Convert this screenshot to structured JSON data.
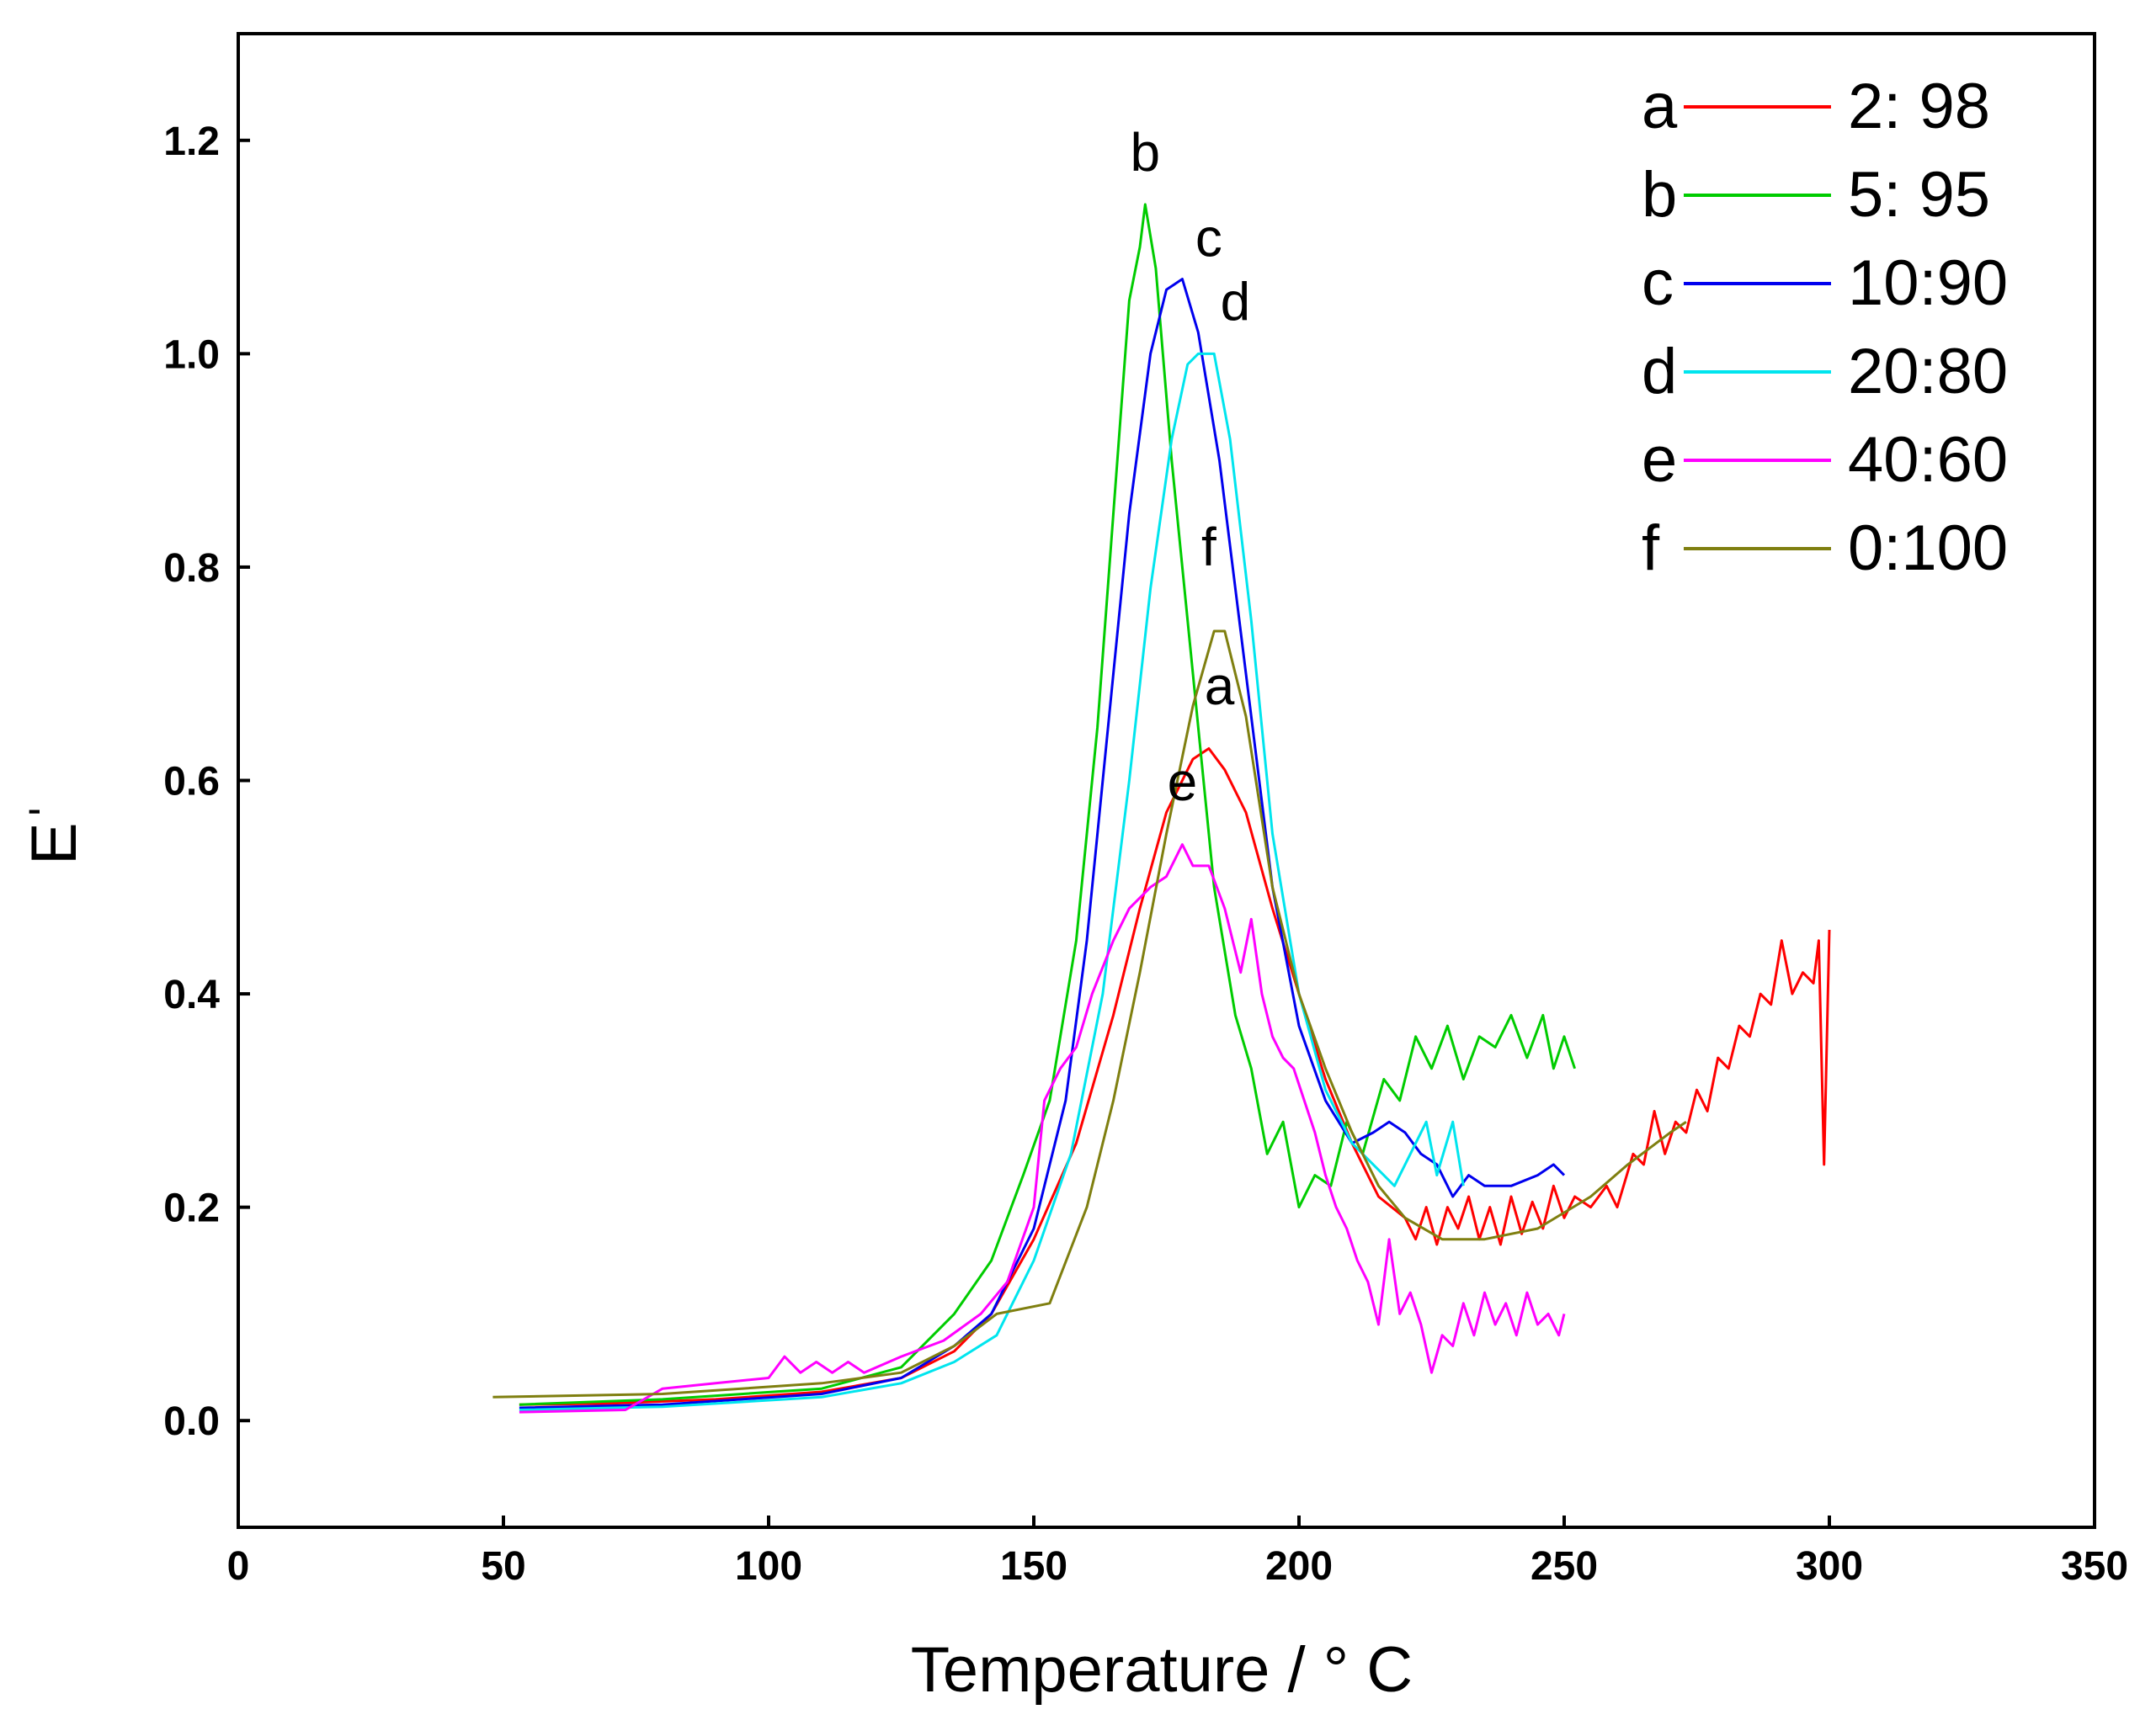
{
  "chart_data": {
    "type": "line",
    "title": "",
    "xlabel": "Temperature / ° C",
    "ylabel": "Eˈ",
    "xlim": [
      0,
      350
    ],
    "ylim": [
      -0.1,
      1.3
    ],
    "xticks": [
      0,
      50,
      100,
      150,
      200,
      250,
      300,
      350
    ],
    "xtick_labels": [
      "0",
      "50",
      "100",
      "150",
      "200",
      "250",
      "300",
      "350"
    ],
    "yticks": [
      0.0,
      0.2,
      0.4,
      0.6,
      0.8,
      1.0,
      1.2
    ],
    "ytick_labels": [
      "0.0",
      "0.2",
      "0.4",
      "0.6",
      "0.8",
      "1.0",
      "1.2"
    ],
    "grid": false,
    "legend_position": "top-right",
    "series": [
      {
        "key": "a",
        "name": "2: 98",
        "color": "#ff0000",
        "points": [
          [
            53,
            0.015
          ],
          [
            70,
            0.016
          ],
          [
            90,
            0.02
          ],
          [
            110,
            0.027
          ],
          [
            125,
            0.04
          ],
          [
            135,
            0.065
          ],
          [
            142,
            0.1
          ],
          [
            150,
            0.17
          ],
          [
            158,
            0.26
          ],
          [
            165,
            0.38
          ],
          [
            170,
            0.48
          ],
          [
            175,
            0.57
          ],
          [
            180,
            0.62
          ],
          [
            183,
            0.63
          ],
          [
            186,
            0.61
          ],
          [
            190,
            0.57
          ],
          [
            195,
            0.48
          ],
          [
            200,
            0.4
          ],
          [
            205,
            0.32
          ],
          [
            210,
            0.26
          ],
          [
            215,
            0.21
          ],
          [
            220,
            0.19
          ],
          [
            222,
            0.17
          ],
          [
            224,
            0.2
          ],
          [
            226,
            0.165
          ],
          [
            228,
            0.2
          ],
          [
            230,
            0.18
          ],
          [
            232,
            0.21
          ],
          [
            234,
            0.17
          ],
          [
            236,
            0.2
          ],
          [
            238,
            0.165
          ],
          [
            240,
            0.21
          ],
          [
            242,
            0.175
          ],
          [
            244,
            0.205
          ],
          [
            246,
            0.18
          ],
          [
            248,
            0.22
          ],
          [
            250,
            0.19
          ],
          [
            252,
            0.21
          ],
          [
            255,
            0.2
          ],
          [
            258,
            0.22
          ],
          [
            260,
            0.2
          ],
          [
            263,
            0.25
          ],
          [
            265,
            0.24
          ],
          [
            267,
            0.29
          ],
          [
            269,
            0.25
          ],
          [
            271,
            0.28
          ],
          [
            273,
            0.27
          ],
          [
            275,
            0.31
          ],
          [
            277,
            0.29
          ],
          [
            279,
            0.34
          ],
          [
            281,
            0.33
          ],
          [
            283,
            0.37
          ],
          [
            285,
            0.36
          ],
          [
            287,
            0.4
          ],
          [
            289,
            0.39
          ],
          [
            291,
            0.45
          ],
          [
            293,
            0.4
          ],
          [
            295,
            0.42
          ],
          [
            297,
            0.41
          ],
          [
            298,
            0.45
          ],
          [
            299,
            0.24
          ],
          [
            300,
            0.46
          ]
        ]
      },
      {
        "key": "b",
        "name": "5: 95",
        "color": "#00cc00",
        "points": [
          [
            53,
            0.015
          ],
          [
            80,
            0.02
          ],
          [
            110,
            0.03
          ],
          [
            125,
            0.05
          ],
          [
            135,
            0.1
          ],
          [
            142,
            0.15
          ],
          [
            148,
            0.23
          ],
          [
            153,
            0.3
          ],
          [
            158,
            0.45
          ],
          [
            162,
            0.65
          ],
          [
            165,
            0.85
          ],
          [
            168,
            1.05
          ],
          [
            170,
            1.1
          ],
          [
            171,
            1.14
          ],
          [
            173,
            1.08
          ],
          [
            176,
            0.9
          ],
          [
            180,
            0.7
          ],
          [
            184,
            0.5
          ],
          [
            188,
            0.38
          ],
          [
            191,
            0.33
          ],
          [
            194,
            0.25
          ],
          [
            197,
            0.28
          ],
          [
            200,
            0.2
          ],
          [
            203,
            0.23
          ],
          [
            206,
            0.22
          ],
          [
            209,
            0.28
          ],
          [
            212,
            0.25
          ],
          [
            216,
            0.32
          ],
          [
            219,
            0.3
          ],
          [
            222,
            0.36
          ],
          [
            225,
            0.33
          ],
          [
            228,
            0.37
          ],
          [
            231,
            0.32
          ],
          [
            234,
            0.36
          ],
          [
            237,
            0.35
          ],
          [
            240,
            0.38
          ],
          [
            243,
            0.34
          ],
          [
            246,
            0.38
          ],
          [
            248,
            0.33
          ],
          [
            250,
            0.36
          ],
          [
            252,
            0.33
          ]
        ]
      },
      {
        "key": "c",
        "name": "10:90",
        "color": "#0000ee",
        "points": [
          [
            53,
            0.012
          ],
          [
            80,
            0.015
          ],
          [
            110,
            0.025
          ],
          [
            125,
            0.04
          ],
          [
            135,
            0.07
          ],
          [
            142,
            0.1
          ],
          [
            150,
            0.18
          ],
          [
            156,
            0.3
          ],
          [
            160,
            0.45
          ],
          [
            164,
            0.65
          ],
          [
            168,
            0.85
          ],
          [
            172,
            1.0
          ],
          [
            175,
            1.06
          ],
          [
            178,
            1.07
          ],
          [
            181,
            1.02
          ],
          [
            185,
            0.9
          ],
          [
            190,
            0.7
          ],
          [
            195,
            0.5
          ],
          [
            200,
            0.37
          ],
          [
            205,
            0.3
          ],
          [
            210,
            0.26
          ],
          [
            214,
            0.27
          ],
          [
            217,
            0.28
          ],
          [
            220,
            0.27
          ],
          [
            223,
            0.25
          ],
          [
            226,
            0.24
          ],
          [
            229,
            0.21
          ],
          [
            232,
            0.23
          ],
          [
            235,
            0.22
          ],
          [
            240,
            0.22
          ],
          [
            245,
            0.23
          ],
          [
            248,
            0.24
          ],
          [
            250,
            0.23
          ]
        ]
      },
      {
        "key": "d",
        "name": "20:80",
        "color": "#00e5ee",
        "points": [
          [
            53,
            0.01
          ],
          [
            80,
            0.013
          ],
          [
            110,
            0.022
          ],
          [
            125,
            0.035
          ],
          [
            135,
            0.055
          ],
          [
            143,
            0.08
          ],
          [
            150,
            0.15
          ],
          [
            157,
            0.25
          ],
          [
            163,
            0.4
          ],
          [
            168,
            0.6
          ],
          [
            172,
            0.78
          ],
          [
            176,
            0.92
          ],
          [
            179,
            0.99
          ],
          [
            181,
            1.0
          ],
          [
            184,
            1.0
          ],
          [
            187,
            0.92
          ],
          [
            191,
            0.75
          ],
          [
            195,
            0.55
          ],
          [
            200,
            0.4
          ],
          [
            205,
            0.31
          ],
          [
            210,
            0.26
          ],
          [
            214,
            0.24
          ],
          [
            218,
            0.22
          ],
          [
            221,
            0.25
          ],
          [
            224,
            0.28
          ],
          [
            226,
            0.23
          ],
          [
            229,
            0.28
          ],
          [
            231,
            0.22
          ]
        ]
      },
      {
        "key": "e",
        "name": "40:60",
        "color": "#ff00ff",
        "points": [
          [
            53,
            0.008
          ],
          [
            73,
            0.01
          ],
          [
            80,
            0.03
          ],
          [
            90,
            0.035
          ],
          [
            100,
            0.04
          ],
          [
            103,
            0.06
          ],
          [
            106,
            0.045
          ],
          [
            109,
            0.055
          ],
          [
            112,
            0.045
          ],
          [
            115,
            0.055
          ],
          [
            118,
            0.045
          ],
          [
            125,
            0.06
          ],
          [
            133,
            0.075
          ],
          [
            140,
            0.1
          ],
          [
            145,
            0.13
          ],
          [
            150,
            0.2
          ],
          [
            152,
            0.3
          ],
          [
            155,
            0.33
          ],
          [
            158,
            0.35
          ],
          [
            161,
            0.4
          ],
          [
            165,
            0.45
          ],
          [
            168,
            0.48
          ],
          [
            172,
            0.5
          ],
          [
            175,
            0.51
          ],
          [
            178,
            0.54
          ],
          [
            180,
            0.52
          ],
          [
            183,
            0.52
          ],
          [
            186,
            0.48
          ],
          [
            189,
            0.42
          ],
          [
            191,
            0.47
          ],
          [
            193,
            0.4
          ],
          [
            195,
            0.36
          ],
          [
            197,
            0.34
          ],
          [
            199,
            0.33
          ],
          [
            201,
            0.3
          ],
          [
            203,
            0.27
          ],
          [
            205,
            0.23
          ],
          [
            207,
            0.2
          ],
          [
            209,
            0.18
          ],
          [
            211,
            0.15
          ],
          [
            213,
            0.13
          ],
          [
            215,
            0.09
          ],
          [
            217,
            0.17
          ],
          [
            219,
            0.1
          ],
          [
            221,
            0.12
          ],
          [
            223,
            0.09
          ],
          [
            225,
            0.045
          ],
          [
            227,
            0.08
          ],
          [
            229,
            0.07
          ],
          [
            231,
            0.11
          ],
          [
            233,
            0.08
          ],
          [
            235,
            0.12
          ],
          [
            237,
            0.09
          ],
          [
            239,
            0.11
          ],
          [
            241,
            0.08
          ],
          [
            243,
            0.12
          ],
          [
            245,
            0.09
          ],
          [
            247,
            0.1
          ],
          [
            249,
            0.08
          ],
          [
            250,
            0.1
          ]
        ]
      },
      {
        "key": "f",
        "name": "0:100",
        "color": "#7f7f10",
        "points": [
          [
            48,
            0.022
          ],
          [
            80,
            0.025
          ],
          [
            110,
            0.035
          ],
          [
            125,
            0.045
          ],
          [
            135,
            0.07
          ],
          [
            143,
            0.1
          ],
          [
            153,
            0.11
          ],
          [
            160,
            0.2
          ],
          [
            165,
            0.3
          ],
          [
            170,
            0.42
          ],
          [
            175,
            0.55
          ],
          [
            180,
            0.67
          ],
          [
            184,
            0.74
          ],
          [
            186,
            0.74
          ],
          [
            190,
            0.66
          ],
          [
            195,
            0.5
          ],
          [
            200,
            0.4
          ],
          [
            205,
            0.33
          ],
          [
            210,
            0.27
          ],
          [
            215,
            0.22
          ],
          [
            220,
            0.19
          ],
          [
            227,
            0.17
          ],
          [
            235,
            0.17
          ],
          [
            245,
            0.18
          ],
          [
            255,
            0.21
          ],
          [
            262,
            0.24
          ],
          [
            270,
            0.27
          ],
          [
            273,
            0.28
          ]
        ]
      }
    ],
    "annotations": [
      {
        "text": "b",
        "x": 171,
        "y": 1.14
      },
      {
        "text": "c",
        "x": 183,
        "y": 1.06
      },
      {
        "text": "d",
        "x": 188,
        "y": 1.0
      },
      {
        "text": "f",
        "x": 183,
        "y": 0.77
      },
      {
        "text": "a",
        "x": 185,
        "y": 0.64
      },
      {
        "text": "e",
        "x": 178,
        "y": 0.55
      }
    ]
  }
}
